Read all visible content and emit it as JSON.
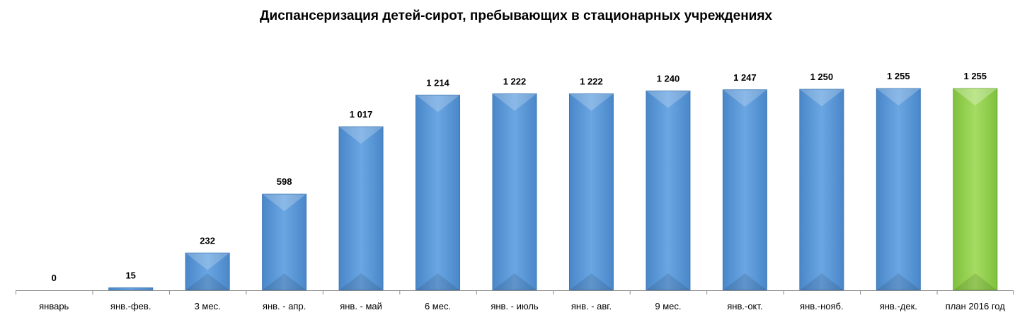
{
  "chart_data": {
    "type": "bar",
    "title": "Диспансеризация детей-сирот, пребывающих в стационарных учреждениях",
    "xlabel": "",
    "ylabel": "",
    "ylim": [
      0,
      1300
    ],
    "categories": [
      "январь",
      "янв.-фев.",
      "3 мес.",
      "янв. - апр.",
      "янв. - май",
      "6 мес.",
      "янв. - июль",
      "янв. - авг.",
      "9 мес.",
      "янв.-окт.",
      "янв.-нояб.",
      "янв.-дек.",
      "план 2016 год"
    ],
    "values": [
      0,
      15,
      232,
      598,
      1017,
      1214,
      1222,
      1222,
      1240,
      1247,
      1250,
      1255,
      1255
    ],
    "value_labels": [
      "0",
      "15",
      "232",
      "598",
      "1 017",
      "1 214",
      "1 222",
      "1 222",
      "1 240",
      "1 247",
      "1 250",
      "1 255",
      "1 255"
    ],
    "grid": false,
    "legend": "none",
    "colors": {
      "bar_blue": "#5b9bd5",
      "bar_blue_edge": "#3f78b5",
      "bar_plan_green": "#92d050",
      "bar_plan_green_edge": "#6aa82c"
    },
    "highlight_index": 12
  }
}
